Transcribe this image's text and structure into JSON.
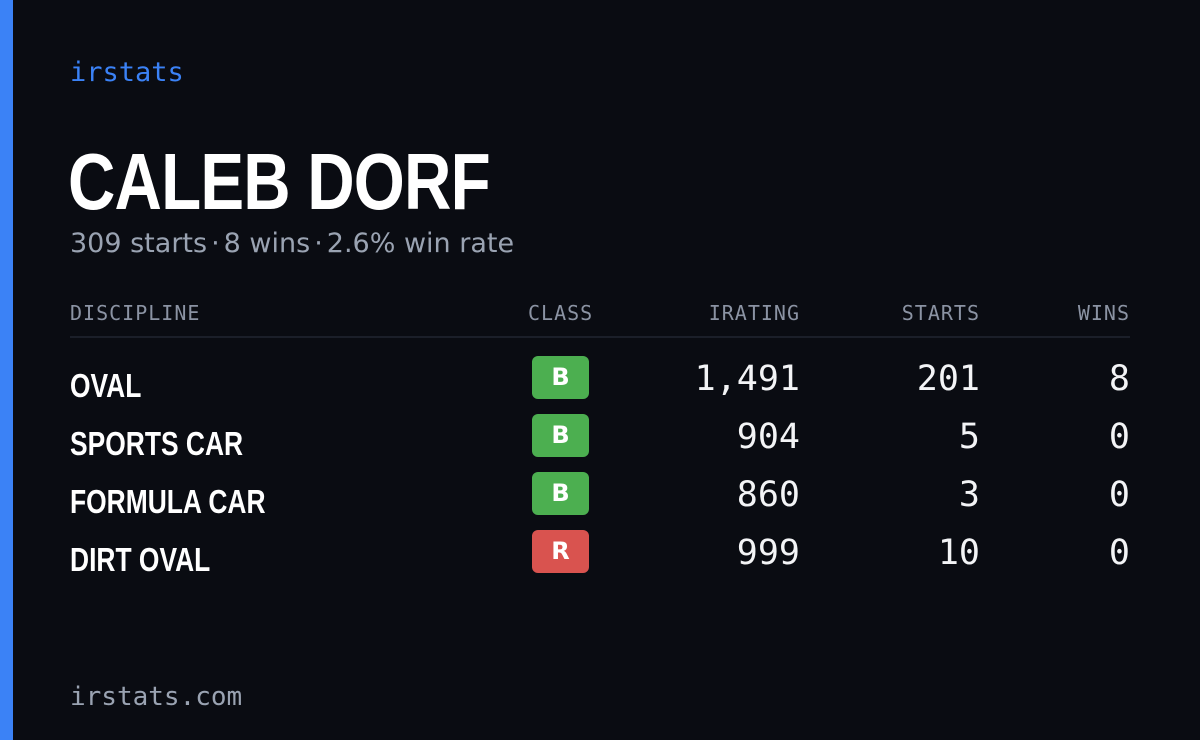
{
  "brand": "irstats",
  "driver": {
    "name": "CALEB DORF"
  },
  "summary": {
    "starts": "309 starts",
    "wins": "8 wins",
    "win_rate": "2.6% win rate",
    "separator": "·"
  },
  "table": {
    "headers": {
      "discipline": "DISCIPLINE",
      "class": "CLASS",
      "irating": "IRATING",
      "starts": "STARTS",
      "wins": "WINS"
    },
    "rows": [
      {
        "discipline": "OVAL",
        "class": "B",
        "class_color": "#4caf50",
        "irating": "1,491",
        "starts": "201",
        "wins": "8"
      },
      {
        "discipline": "SPORTS CAR",
        "class": "B",
        "class_color": "#4caf50",
        "irating": "904",
        "starts": "5",
        "wins": "0"
      },
      {
        "discipline": "FORMULA CAR",
        "class": "B",
        "class_color": "#4caf50",
        "irating": "860",
        "starts": "3",
        "wins": "0"
      },
      {
        "discipline": "DIRT OVAL",
        "class": "R",
        "class_color": "#d9534f",
        "irating": "999",
        "starts": "10",
        "wins": "0"
      }
    ]
  },
  "footer": {
    "site": "irstats.com"
  },
  "colors": {
    "accent": "#3b82f6",
    "background": "#0a0c12"
  }
}
